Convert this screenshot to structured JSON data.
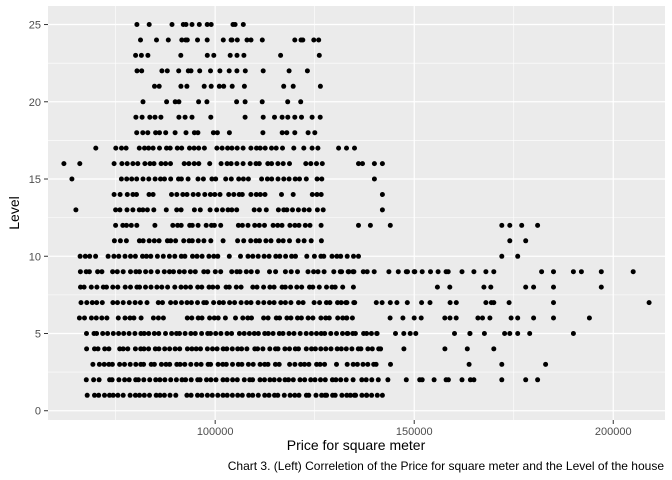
{
  "chart_data": {
    "type": "scatter",
    "xlabel": "Price for square meter",
    "ylabel": "Level",
    "xlim": [
      58000,
      213000
    ],
    "ylim": [
      -0.6,
      26.2
    ],
    "xticks": [
      100000,
      150000,
      200000
    ],
    "xtick_labels": [
      "100000",
      "150000",
      "200000"
    ],
    "yticks": [
      0,
      5,
      10,
      15,
      20,
      25
    ],
    "ytick_labels": [
      "0",
      "5",
      "10",
      "15",
      "20",
      "25"
    ],
    "grid": true,
    "legend": "none",
    "colors": {
      "panel": "#ebebeb",
      "grid": "#ffffff",
      "point": "#000000"
    },
    "bands": [
      {
        "x0": 68000,
        "x1": 142000,
        "y0": 1,
        "y1": 5,
        "step": 1300,
        "density": 0.97
      },
      {
        "x0": 66000,
        "x1": 135000,
        "y0": 6,
        "y1": 10,
        "step": 1400,
        "density": 0.92
      },
      {
        "x0": 75000,
        "x1": 128000,
        "y0": 11,
        "y1": 17,
        "step": 1400,
        "density": 0.85
      },
      {
        "x0": 80000,
        "x1": 108000,
        "y0": 18,
        "y1": 25,
        "step": 1600,
        "density": 0.55
      },
      {
        "x0": 112000,
        "x1": 127000,
        "y0": 18,
        "y1": 24,
        "step": 1600,
        "density": 0.5
      },
      {
        "x0": 130000,
        "x1": 175000,
        "y0": 5,
        "y1": 9,
        "step": 1700,
        "density": 0.35
      },
      {
        "x0": 142000,
        "x1": 168000,
        "y0": 2,
        "y1": 4,
        "step": 1800,
        "density": 0.25
      }
    ],
    "points": [
      [
        62000,
        16
      ],
      [
        64000,
        15
      ],
      [
        65000,
        13
      ],
      [
        66000,
        16
      ],
      [
        70000,
        17
      ],
      [
        92000,
        25
      ],
      [
        96000,
        25
      ],
      [
        98000,
        25
      ],
      [
        99000,
        25
      ],
      [
        105000,
        25
      ],
      [
        93000,
        24
      ],
      [
        98000,
        24
      ],
      [
        104000,
        24
      ],
      [
        108000,
        24
      ],
      [
        109000,
        24
      ],
      [
        120000,
        24
      ],
      [
        122000,
        24
      ],
      [
        126000,
        24
      ],
      [
        131000,
        17
      ],
      [
        133000,
        17
      ],
      [
        135000,
        17
      ],
      [
        136000,
        16
      ],
      [
        137000,
        16
      ],
      [
        140000,
        16
      ],
      [
        142000,
        16
      ],
      [
        140000,
        15
      ],
      [
        142000,
        14
      ],
      [
        142000,
        13
      ],
      [
        136000,
        12
      ],
      [
        139000,
        12
      ],
      [
        144000,
        12
      ],
      [
        136000,
        10
      ],
      [
        146000,
        9
      ],
      [
        148000,
        9
      ],
      [
        150000,
        9
      ],
      [
        152000,
        9
      ],
      [
        156000,
        9
      ],
      [
        158000,
        9
      ],
      [
        162000,
        9
      ],
      [
        165000,
        9
      ],
      [
        168000,
        9
      ],
      [
        170000,
        9
      ],
      [
        172000,
        10
      ],
      [
        176000,
        10
      ],
      [
        174000,
        11
      ],
      [
        172000,
        12
      ],
      [
        174000,
        12
      ],
      [
        177000,
        12
      ],
      [
        178000,
        11
      ],
      [
        181000,
        12
      ],
      [
        182000,
        9
      ],
      [
        185000,
        9
      ],
      [
        178000,
        8
      ],
      [
        180000,
        8
      ],
      [
        185000,
        8
      ],
      [
        185000,
        7
      ],
      [
        185000,
        6
      ],
      [
        190000,
        9
      ],
      [
        192000,
        9
      ],
      [
        197000,
        9
      ],
      [
        205000,
        9
      ],
      [
        197000,
        8
      ],
      [
        209000,
        7
      ],
      [
        194000,
        6
      ],
      [
        190000,
        5
      ],
      [
        183000,
        3
      ],
      [
        172000,
        3
      ],
      [
        178000,
        2
      ],
      [
        181000,
        2
      ],
      [
        172000,
        2
      ],
      [
        148000,
        2
      ],
      [
        152000,
        2
      ],
      [
        155000,
        2
      ],
      [
        158000,
        2
      ],
      [
        162000,
        2
      ],
      [
        165000,
        2
      ],
      [
        142000,
        1
      ],
      [
        138000,
        1
      ],
      [
        135000,
        1
      ],
      [
        128000,
        1
      ],
      [
        174000,
        5
      ],
      [
        176000,
        5
      ],
      [
        179000,
        5
      ],
      [
        180000,
        6
      ],
      [
        176000,
        6
      ],
      [
        164000,
        5
      ],
      [
        166000,
        6
      ],
      [
        168000,
        7
      ],
      [
        170000,
        7
      ],
      [
        170000,
        4
      ]
    ]
  },
  "caption": "Chart 3. (Left) Correletion of the Price for square meter and the Level of the house"
}
